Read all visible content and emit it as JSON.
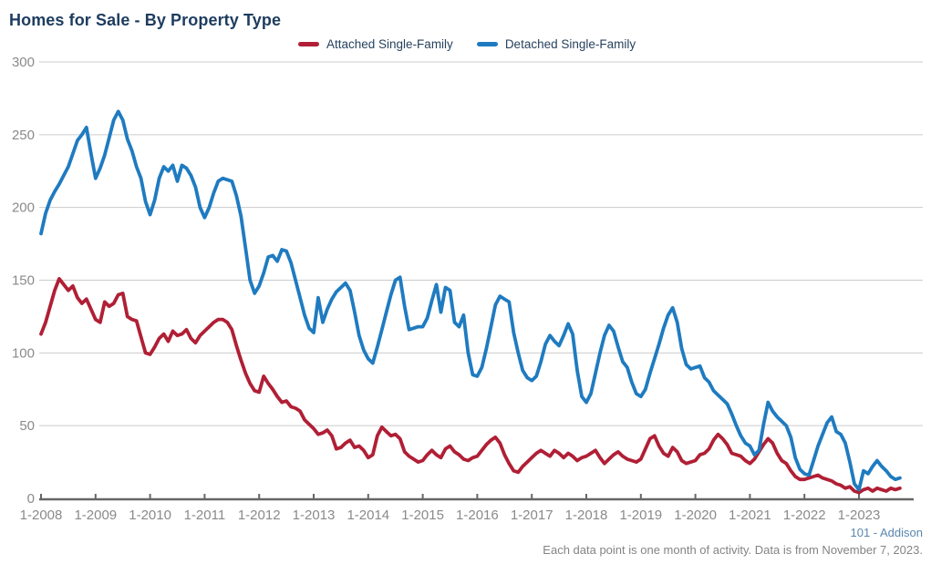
{
  "title": "Homes for Sale - By Property Type",
  "footer": {
    "attribution": "101 - Addison",
    "note": "Each data point is one month of activity. Data is from November 7, 2023."
  },
  "colors": {
    "attached": "#b01f35",
    "detached": "#1f7bc0",
    "title_text": "#1d3c5e",
    "axis_label": "#8a8a8a",
    "gridline": "#cccccc",
    "axis_line": "#666666"
  },
  "chart_data": {
    "type": "line",
    "title": "Homes for Sale - By Property Type",
    "xlabel": "",
    "ylabel": "",
    "ylim": [
      0,
      300
    ],
    "y_ticks": [
      0,
      50,
      100,
      150,
      200,
      250,
      300
    ],
    "grid": true,
    "legend_position": "top-center",
    "x_unit": "month",
    "x_range_note": "monthly points from 1-2008 through 10-2023",
    "x_tick_labels": [
      "1-2008",
      "1-2009",
      "1-2010",
      "1-2011",
      "1-2012",
      "1-2013",
      "1-2014",
      "1-2015",
      "1-2016",
      "1-2017",
      "1-2018",
      "1-2019",
      "1-2020",
      "1-2021",
      "1-2022",
      "1-2023"
    ],
    "series": [
      {
        "name": "Attached Single-Family",
        "color": "#b01f35",
        "values": [
          113,
          121,
          132,
          143,
          151,
          147,
          143,
          146,
          138,
          134,
          137,
          130,
          123,
          121,
          135,
          132,
          134,
          140,
          141,
          125,
          123,
          122,
          111,
          100,
          99,
          104,
          110,
          113,
          108,
          115,
          112,
          113,
          116,
          110,
          107,
          112,
          115,
          118,
          121,
          123,
          123,
          121,
          116,
          105,
          95,
          86,
          79,
          74,
          73,
          84,
          79,
          75,
          70,
          66,
          67,
          63,
          62,
          60,
          54,
          51,
          48,
          44,
          45,
          47,
          43,
          34,
          35,
          38,
          40,
          35,
          36,
          33,
          28,
          30,
          43,
          49,
          46,
          43,
          44,
          41,
          32,
          29,
          27,
          25,
          26,
          30,
          33,
          30,
          28,
          34,
          36,
          32,
          30,
          27,
          26,
          28,
          29,
          33,
          37,
          40,
          42,
          38,
          30,
          24,
          19,
          18,
          22,
          25,
          28,
          31,
          33,
          31,
          29,
          33,
          31,
          28,
          31,
          29,
          26,
          28,
          29,
          31,
          33,
          28,
          24,
          27,
          30,
          32,
          29,
          27,
          26,
          25,
          27,
          34,
          41,
          43,
          36,
          31,
          29,
          35,
          32,
          26,
          24,
          25,
          26,
          30,
          31,
          34,
          40,
          44,
          41,
          37,
          31,
          30,
          29,
          26,
          24,
          27,
          32,
          37,
          41,
          38,
          31,
          26,
          24,
          19,
          15,
          13,
          13,
          14,
          15,
          16,
          14,
          13,
          12,
          10,
          9,
          7,
          8,
          5,
          4,
          6,
          7,
          5,
          7,
          6,
          5,
          7,
          6,
          7
        ]
      },
      {
        "name": "Detached Single-Family",
        "color": "#1f7bc0",
        "values": [
          182,
          196,
          205,
          211,
          216,
          222,
          228,
          237,
          246,
          250,
          255,
          237,
          220,
          227,
          236,
          248,
          260,
          266,
          260,
          247,
          239,
          228,
          220,
          204,
          195,
          205,
          220,
          228,
          225,
          229,
          218,
          229,
          227,
          222,
          214,
          200,
          193,
          200,
          210,
          218,
          220,
          219,
          218,
          208,
          194,
          172,
          150,
          141,
          146,
          155,
          166,
          167,
          163,
          171,
          170,
          162,
          150,
          138,
          126,
          117,
          114,
          138,
          121,
          130,
          137,
          142,
          145,
          148,
          143,
          128,
          112,
          102,
          96,
          93,
          104,
          116,
          128,
          140,
          150,
          152,
          132,
          116,
          117,
          118,
          118,
          124,
          136,
          147,
          128,
          145,
          143,
          121,
          118,
          126,
          100,
          85,
          84,
          90,
          103,
          118,
          133,
          139,
          137,
          135,
          114,
          100,
          88,
          83,
          81,
          84,
          94,
          106,
          112,
          108,
          105,
          112,
          120,
          113,
          88,
          70,
          66,
          72,
          86,
          100,
          112,
          119,
          115,
          104,
          94,
          90,
          80,
          72,
          70,
          75,
          86,
          96,
          106,
          117,
          126,
          131,
          121,
          103,
          92,
          89,
          90,
          91,
          83,
          80,
          74,
          71,
          68,
          65,
          58,
          50,
          43,
          38,
          36,
          30,
          33,
          51,
          66,
          60,
          56,
          53,
          50,
          42,
          28,
          20,
          17,
          16,
          26,
          36,
          44,
          52,
          56,
          46,
          44,
          38,
          25,
          10,
          6,
          19,
          17,
          22,
          26,
          22,
          19,
          15,
          13,
          14
        ]
      }
    ]
  }
}
